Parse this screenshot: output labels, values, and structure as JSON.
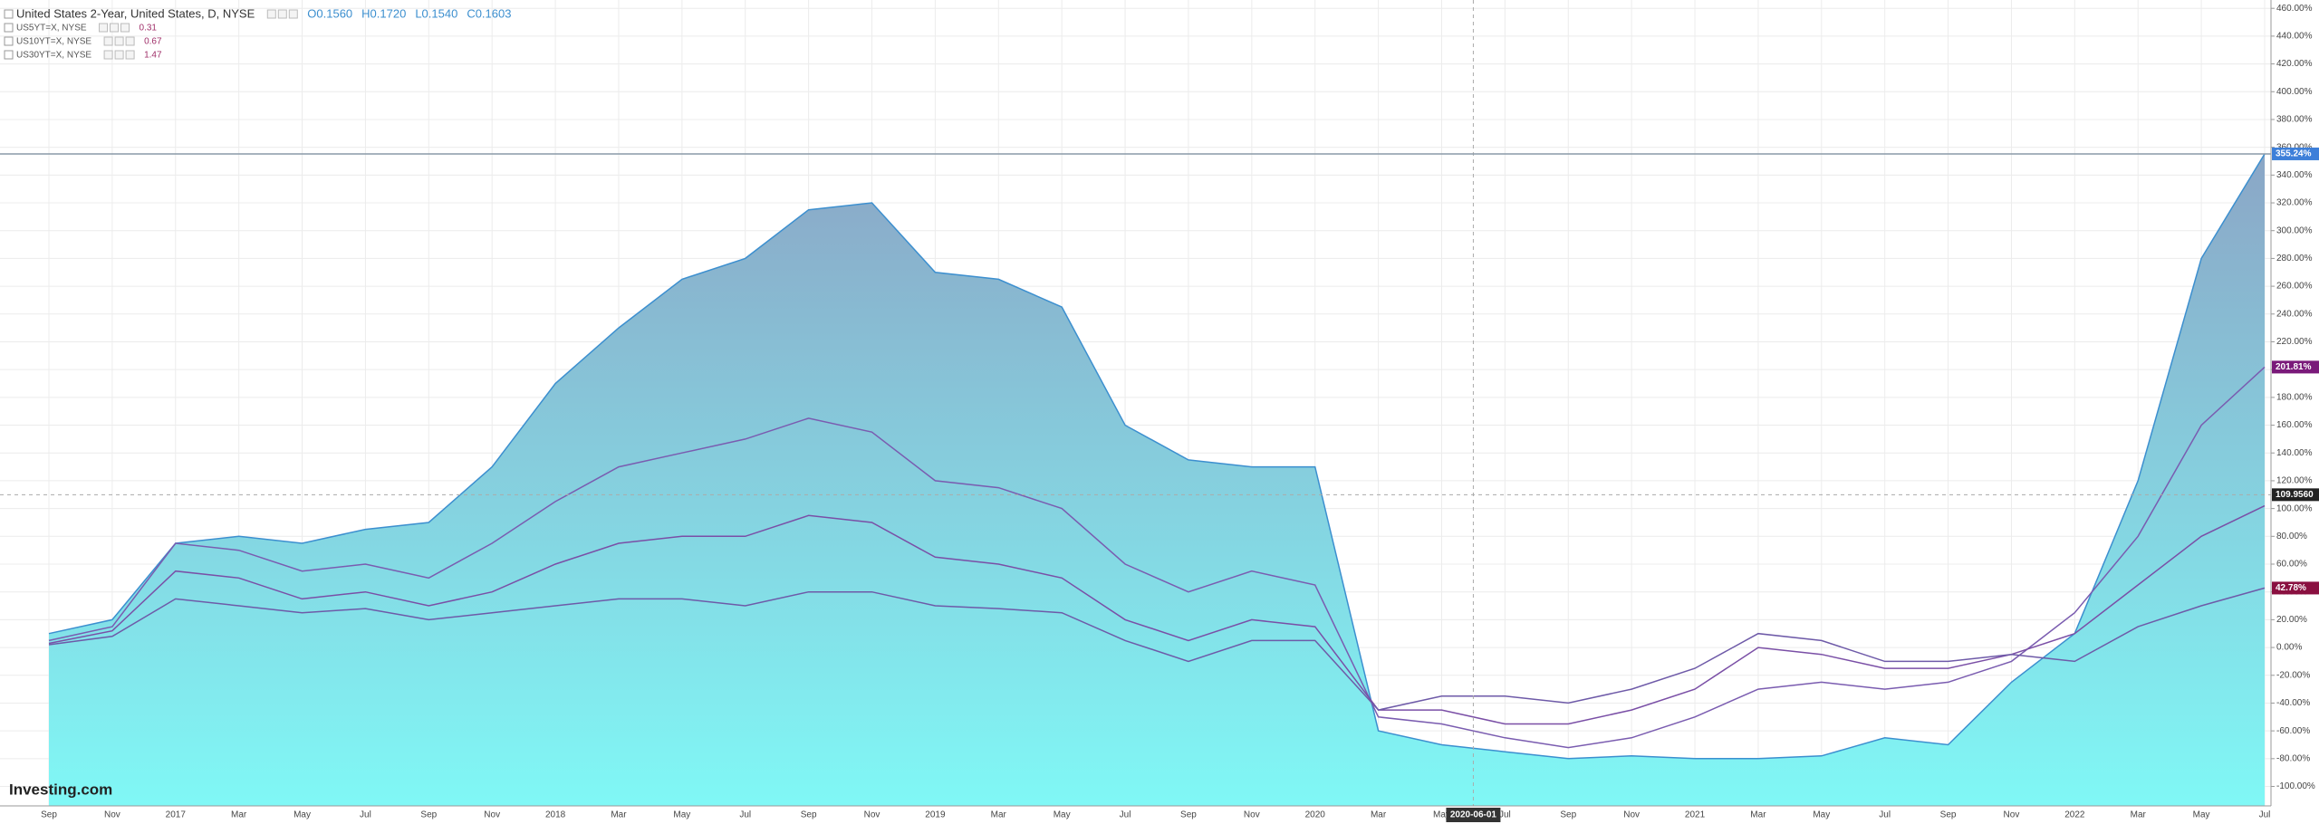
{
  "chart_data": {
    "type": "line",
    "logo": "Investing.com",
    "categories": [
      "Sep",
      "Nov",
      "2017",
      "Mar",
      "May",
      "Jul",
      "Sep",
      "Nov",
      "2018",
      "Mar",
      "May",
      "Jul",
      "Sep",
      "Nov",
      "2019",
      "Mar",
      "May",
      "Jul",
      "Sep",
      "Nov",
      "2020",
      "Mar",
      "May",
      "Jul",
      "Sep",
      "Nov",
      "2021",
      "Mar",
      "May",
      "Jul",
      "Sep",
      "Nov",
      "2022",
      "Mar",
      "May",
      "Jul"
    ],
    "series": [
      {
        "name": "United States 2-Year, United States, D, NYSE",
        "ohlc": [
          "O0.1560",
          "H0.1720",
          "L0.1540",
          "C0.1603"
        ],
        "color": "#3c8fcf",
        "area": true,
        "values": [
          10,
          20,
          75,
          80,
          75,
          85,
          90,
          130,
          190,
          230,
          265,
          280,
          315,
          320,
          270,
          265,
          245,
          160,
          135,
          130,
          130,
          -60,
          -70,
          -75,
          -80,
          -78,
          -80,
          -80,
          -78,
          -65,
          -70,
          -25,
          10,
          120,
          280,
          355.24
        ]
      },
      {
        "name": "US5YT=X, NYSE",
        "last": 0.31,
        "color": "#7a5cb0",
        "area": false,
        "values": [
          5,
          15,
          75,
          70,
          55,
          60,
          50,
          75,
          105,
          130,
          140,
          150,
          165,
          155,
          120,
          115,
          100,
          60,
          40,
          55,
          45,
          -50,
          -55,
          -65,
          -72,
          -65,
          -50,
          -30,
          -25,
          -30,
          -25,
          -10,
          25,
          80,
          160,
          201.81
        ]
      },
      {
        "name": "US10YT=X, NYSE",
        "last": 0.67,
        "color": "#7a4fa6",
        "area": false,
        "values": [
          3,
          12,
          55,
          50,
          35,
          40,
          30,
          40,
          60,
          75,
          80,
          80,
          95,
          90,
          65,
          60,
          50,
          20,
          5,
          20,
          15,
          -45,
          -45,
          -55,
          -55,
          -45,
          -30,
          0,
          -5,
          -15,
          -15,
          -5,
          10,
          45,
          80,
          102
        ]
      },
      {
        "name": "US30YT=X, NYSE",
        "last": 1.47,
        "color": "#6e5aa8",
        "area": false,
        "values": [
          2,
          8,
          35,
          30,
          25,
          28,
          20,
          25,
          30,
          35,
          35,
          30,
          40,
          40,
          30,
          28,
          25,
          5,
          -10,
          5,
          5,
          -45,
          -35,
          -35,
          -40,
          -30,
          -15,
          10,
          5,
          -10,
          -10,
          -5,
          -10,
          15,
          30,
          42.78
        ]
      }
    ],
    "ylim": [
      -114,
      466
    ],
    "yticks": [
      {
        "value": -100,
        "label": "-100.00%"
      },
      {
        "value": -80,
        "label": "-80.00%"
      },
      {
        "value": -60,
        "label": "-60.00%"
      },
      {
        "value": -40,
        "label": "-40.00%"
      },
      {
        "value": -20,
        "label": "-20.00%"
      },
      {
        "value": 0,
        "label": "0.00%"
      },
      {
        "value": 20,
        "label": "20.00%"
      },
      {
        "value": 40,
        "label": "40.00%"
      },
      {
        "value": 60,
        "label": "60.00%"
      },
      {
        "value": 80,
        "label": "80.00%"
      },
      {
        "value": 100,
        "label": "100.00%"
      },
      {
        "value": 120,
        "label": "120.00%"
      },
      {
        "value": 140,
        "label": "140.00%"
      },
      {
        "value": 160,
        "label": "160.00%"
      },
      {
        "value": 180,
        "label": "180.00%"
      },
      {
        "value": 200,
        "label": "200.00%"
      },
      {
        "value": 220,
        "label": "220.00%"
      },
      {
        "value": 240,
        "label": "240.00%"
      },
      {
        "value": 260,
        "label": "260.00%"
      },
      {
        "value": 280,
        "label": "280.00%"
      },
      {
        "value": 300,
        "label": "300.00%"
      },
      {
        "value": 320,
        "label": "320.00%"
      },
      {
        "value": 340,
        "label": "340.00%"
      },
      {
        "value": 360,
        "label": "360.00%"
      },
      {
        "value": 380,
        "label": "380.00%"
      },
      {
        "value": 400,
        "label": "400.00%"
      },
      {
        "value": 420,
        "label": "420.00%"
      },
      {
        "value": 440,
        "label": "440.00%"
      },
      {
        "value": 460,
        "label": "460.00%"
      }
    ],
    "grid": true,
    "badges": [
      {
        "value": 355.24,
        "label": "355.24%",
        "color": "#3d7fd9",
        "line": true
      },
      {
        "value": 201.81,
        "label": "201.81%",
        "color": "#7a1a7a",
        "line": false
      },
      {
        "value": 109.956,
        "label": "109.9560",
        "color": "#222222",
        "line": false
      },
      {
        "value": 42.78,
        "label": "42.78%",
        "color": "#8a1040",
        "line": false
      }
    ],
    "crosshair": {
      "x_label": "2020-06-01",
      "y_value": 109.956
    }
  }
}
